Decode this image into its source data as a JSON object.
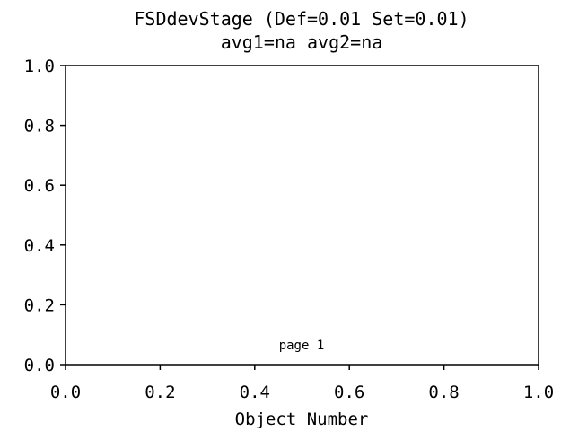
{
  "chart_data": {
    "type": "scatter",
    "title": "FSDdevStage (Def=0.01 Set=0.01)",
    "subtitle": "avg1=na avg2=na",
    "xlabel": "Object Number",
    "ylabel": "",
    "xlim": [
      0.0,
      1.0
    ],
    "ylim": [
      0.0,
      1.0
    ],
    "x_ticks": [
      {
        "value": 0.0,
        "label": "0.0"
      },
      {
        "value": 0.2,
        "label": "0.2"
      },
      {
        "value": 0.4,
        "label": "0.4"
      },
      {
        "value": 0.6,
        "label": "0.6"
      },
      {
        "value": 0.8,
        "label": "0.8"
      },
      {
        "value": 1.0,
        "label": "1.0"
      }
    ],
    "y_ticks": [
      {
        "value": 0.0,
        "label": "0.0"
      },
      {
        "value": 0.2,
        "label": "0.2"
      },
      {
        "value": 0.4,
        "label": "0.4"
      },
      {
        "value": 0.6,
        "label": "0.6"
      },
      {
        "value": 0.8,
        "label": "0.8"
      },
      {
        "value": 1.0,
        "label": "1.0"
      }
    ],
    "series": [],
    "grid": false,
    "annotation": "page 1"
  }
}
